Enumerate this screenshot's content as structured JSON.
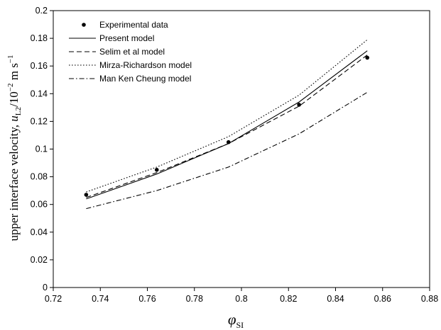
{
  "chart_data": {
    "type": "line",
    "xlabel": "φ",
    "xlabel_sub": "SI",
    "ylabel_prefix": "upper interface velocity, ",
    "ylabel_var": "u",
    "ylabel_sub": "L2",
    "ylabel_unit_pre": "/10",
    "ylabel_exp": "−2",
    "ylabel_unit_mid": " m s",
    "ylabel_exp2": "−1",
    "xlim": [
      0.72,
      0.88
    ],
    "ylim": [
      0,
      0.2
    ],
    "x_ticks": [
      "0.72",
      "0.74",
      "0.76",
      "0.78",
      "0.8",
      "0.82",
      "0.84",
      "0.86",
      "0.88"
    ],
    "y_ticks": [
      "0",
      "0.02",
      "0.04",
      "0.06",
      "0.08",
      "0.1",
      "0.12",
      "0.14",
      "0.16",
      "0.18",
      "0.2"
    ],
    "grid": false,
    "legend_position": "top-left",
    "series": [
      {
        "name": "Experimental data",
        "style": "markers",
        "x": [
          0.734,
          0.764,
          0.7945,
          0.8245,
          0.8535
        ],
        "values": [
          0.067,
          0.085,
          0.105,
          0.132,
          0.166
        ]
      },
      {
        "name": "Present model",
        "style": "solid",
        "x": [
          0.734,
          0.764,
          0.7945,
          0.8245,
          0.8535
        ],
        "values": [
          0.064,
          0.082,
          0.104,
          0.134,
          0.171
        ]
      },
      {
        "name": "Selim et al model",
        "style": "dashed",
        "x": [
          0.734,
          0.764,
          0.7945,
          0.8245,
          0.8535
        ],
        "values": [
          0.065,
          0.083,
          0.104,
          0.131,
          0.168
        ]
      },
      {
        "name": "Mirza-Richardson model",
        "style": "dotted",
        "x": [
          0.734,
          0.764,
          0.7945,
          0.8245,
          0.8535
        ],
        "values": [
          0.069,
          0.087,
          0.109,
          0.139,
          0.179
        ]
      },
      {
        "name": "Man Ken Cheung model",
        "style": "dashdot",
        "x": [
          0.734,
          0.764,
          0.7945,
          0.8245,
          0.8535
        ],
        "values": [
          0.057,
          0.07,
          0.087,
          0.111,
          0.141
        ]
      }
    ]
  }
}
